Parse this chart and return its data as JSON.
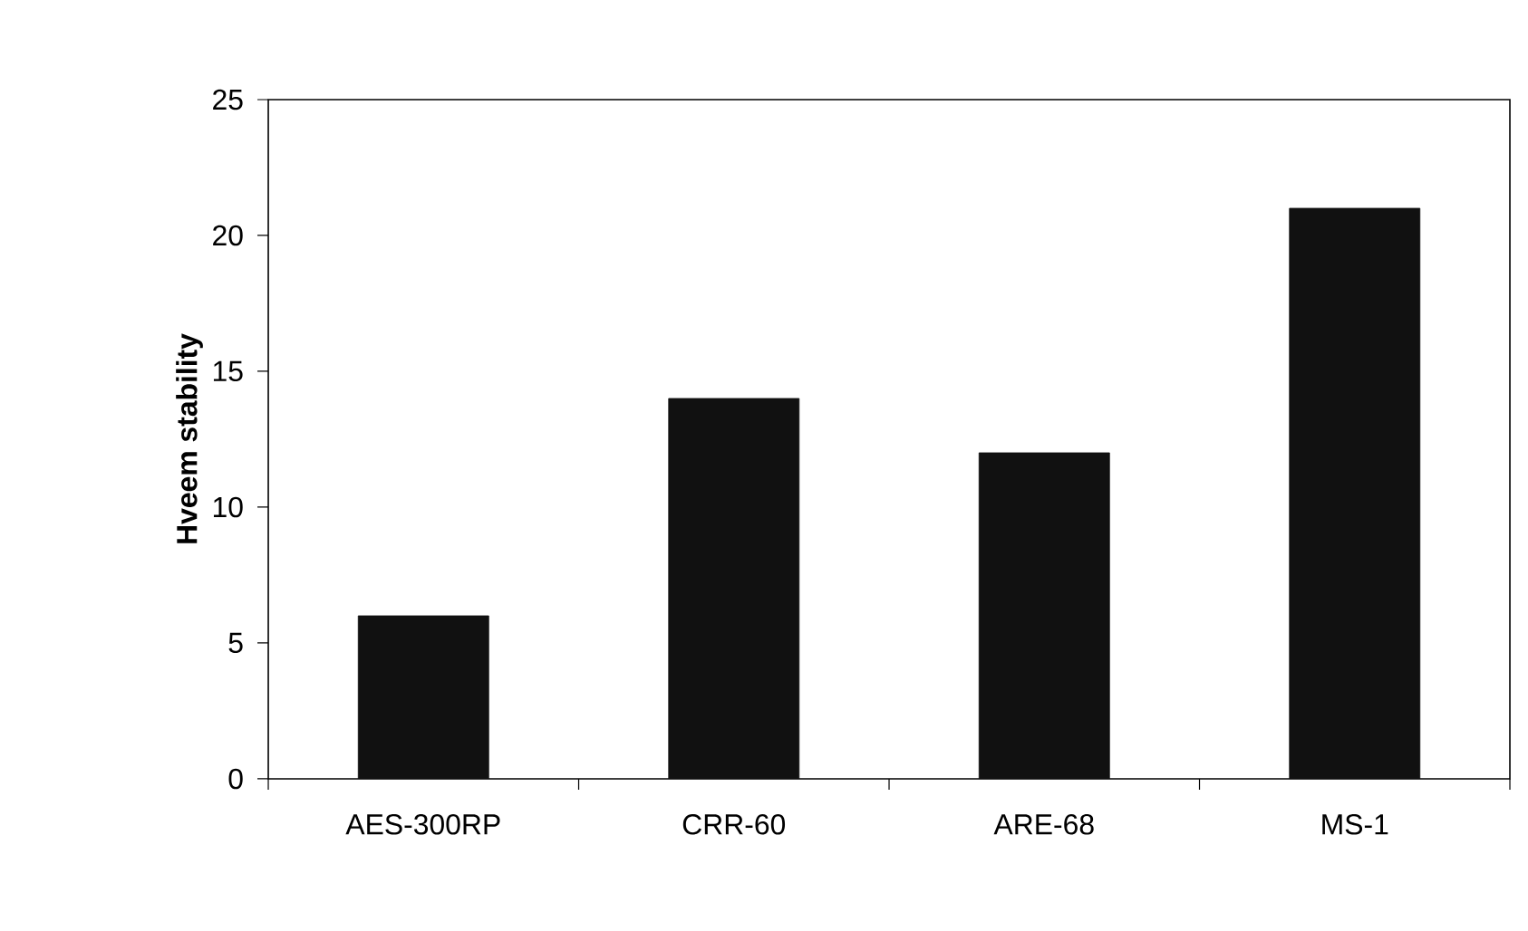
{
  "chart_data": {
    "type": "bar",
    "ylabel": "Hveem stability",
    "categories": [
      "AES-300RP",
      "CRR-60",
      "ARE-68",
      "MS-1"
    ],
    "values": [
      6,
      14,
      12,
      21
    ],
    "color": "#111111",
    "ylim": [
      0,
      25
    ],
    "yticks": [
      0,
      5,
      10,
      15,
      20,
      25
    ],
    "grid": false
  }
}
